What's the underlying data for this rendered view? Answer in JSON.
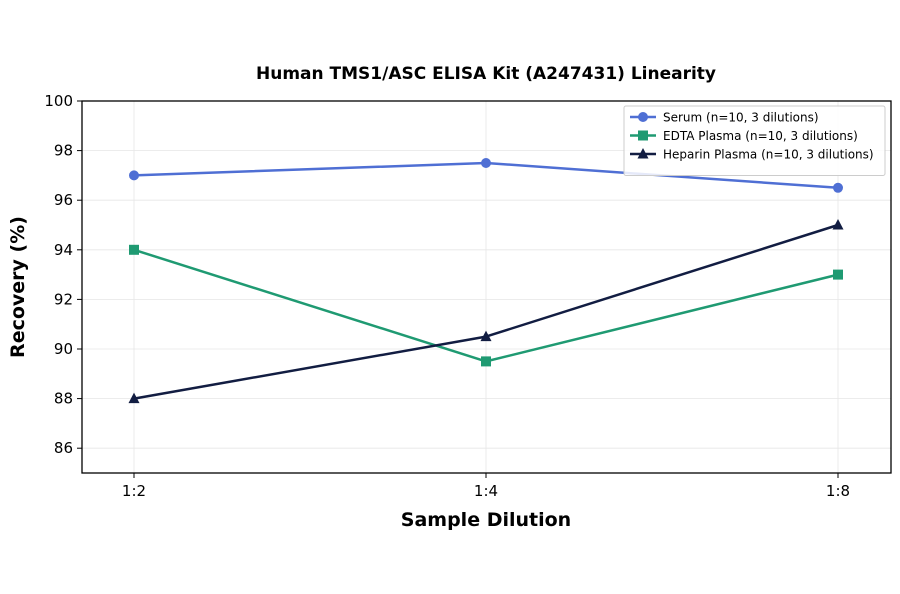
{
  "chart_data": {
    "type": "line",
    "title": "Human TMS1/ASC ELISA Kit (A247431) Linearity",
    "xlabel": "Sample Dilution",
    "ylabel": "Recovery (%)",
    "categories": [
      "1:2",
      "1:4",
      "1:8"
    ],
    "ylim": [
      85,
      100
    ],
    "yticks": [
      86,
      88,
      90,
      92,
      94,
      96,
      98,
      100
    ],
    "grid": true,
    "legend_position": "top-right",
    "series": [
      {
        "name": "Serum (n=10, 3 dilutions)",
        "values": [
          97.0,
          97.5,
          96.5
        ],
        "color": "#4f6fd4",
        "marker": "circle"
      },
      {
        "name": "EDTA Plasma (n=10, 3 dilutions)",
        "values": [
          94.0,
          89.5,
          93.0
        ],
        "color": "#1f9a72",
        "marker": "square"
      },
      {
        "name": "Heparin Plasma (n=10, 3 dilutions)",
        "values": [
          88.0,
          90.5,
          95.0
        ],
        "color": "#121d42",
        "marker": "triangle"
      }
    ]
  }
}
